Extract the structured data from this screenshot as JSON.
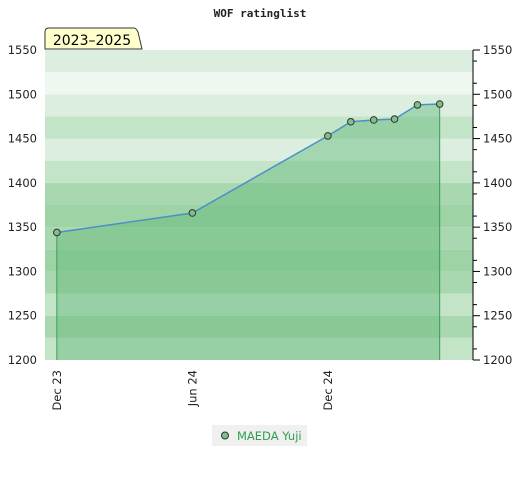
{
  "chart_data": {
    "type": "area",
    "title": "WOF ratinglist",
    "period_badge": "2023–2025",
    "y_range": [
      1200,
      1550
    ],
    "y_ticks": [
      1200,
      1250,
      1300,
      1350,
      1400,
      1450,
      1500,
      1550
    ],
    "x_range": [
      "2023-11-15",
      "2025-06-15"
    ],
    "x_ticks": [
      {
        "date": "2023-12-01",
        "label": "Dec 23"
      },
      {
        "date": "2024-06-01",
        "label": "Jun 24"
      },
      {
        "date": "2024-12-01",
        "label": "Dec 24"
      }
    ],
    "series": [
      {
        "name": "MAEDA Yuji",
        "color": "#4a90c8",
        "fill_color": "#5fb878",
        "marker_color": "#7fc08a",
        "points": [
          {
            "x": "2023-12-01",
            "y": 1344
          },
          {
            "x": "2024-06-01",
            "y": 1366
          },
          {
            "x": "2024-12-01",
            "y": 1453
          },
          {
            "x": "2025-01-01",
            "y": 1469
          },
          {
            "x": "2025-02-01",
            "y": 1471
          },
          {
            "x": "2025-03-01",
            "y": 1472
          },
          {
            "x": "2025-04-01",
            "y": 1488
          },
          {
            "x": "2025-05-01",
            "y": 1489
          }
        ]
      }
    ],
    "band_colors": [
      "#9ed3a6",
      "#a9d8b0",
      "#c4e4c8",
      "#dceee0",
      "#eef7f0"
    ],
    "grid": false,
    "legend_position": "bottom-center",
    "y_axis_both_sides": true
  }
}
